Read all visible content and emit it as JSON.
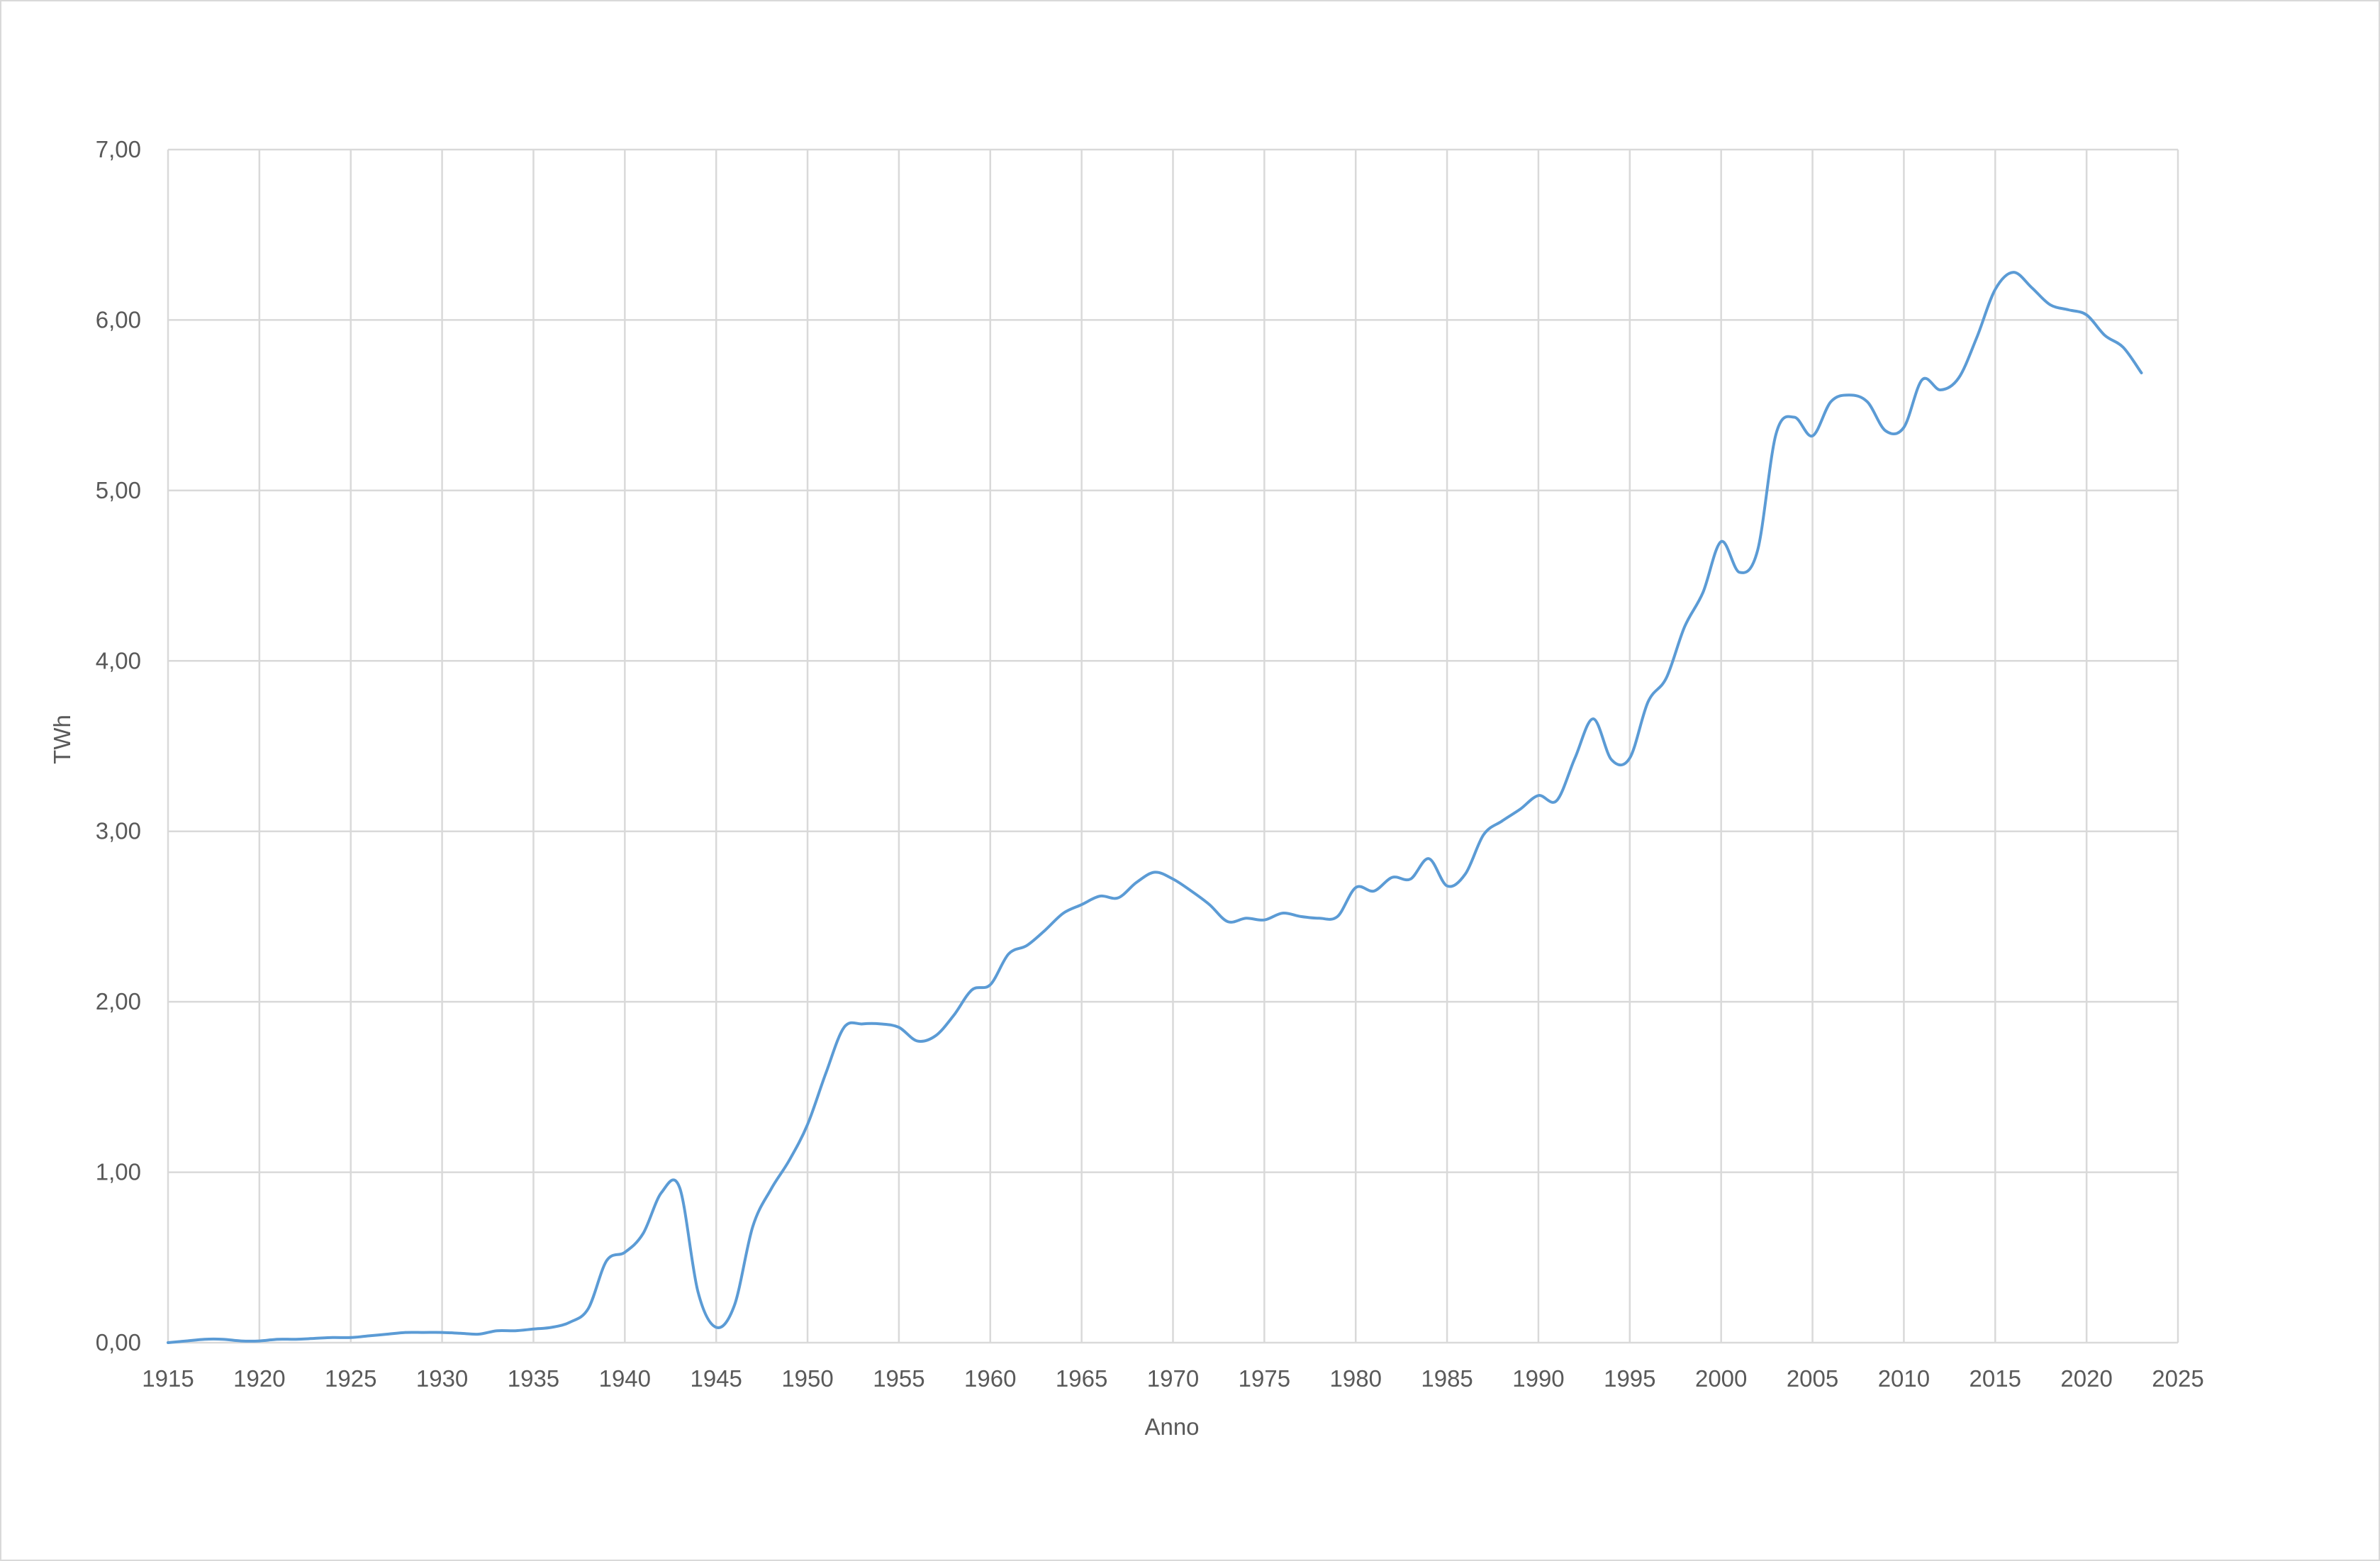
{
  "chart_data": {
    "type": "line",
    "title": "",
    "xlabel": "Anno",
    "ylabel": "TWh",
    "xlim": [
      1915,
      2025
    ],
    "ylim": [
      0,
      7
    ],
    "x_ticks": [
      "1915",
      "1920",
      "1925",
      "1930",
      "1935",
      "1940",
      "1945",
      "1950",
      "1955",
      "1960",
      "1965",
      "1970",
      "1975",
      "1980",
      "1985",
      "1990",
      "1995",
      "2000",
      "2005",
      "2010",
      "2015",
      "2020",
      "2025"
    ],
    "y_ticks": [
      "0,00",
      "1,00",
      "2,00",
      "3,00",
      "4,00",
      "5,00",
      "6,00",
      "7,00"
    ],
    "grid": true,
    "legend": "none",
    "colors": {
      "series": "#5b9bd5",
      "grid": "#d9d9d9",
      "text": "#595959"
    },
    "series": [
      {
        "x": [
          1915,
          1916,
          1917,
          1918,
          1919,
          1920,
          1921,
          1922,
          1923,
          1924,
          1925,
          1926,
          1927,
          1928,
          1929,
          1930,
          1931,
          1932,
          1933,
          1934,
          1935,
          1936,
          1937,
          1938,
          1939,
          1940,
          1941,
          1942,
          1943,
          1944,
          1945,
          1946,
          1947,
          1948,
          1949,
          1950,
          1951,
          1952,
          1953,
          1954,
          1955,
          1956,
          1957,
          1958,
          1959,
          1960,
          1961,
          1962,
          1963,
          1964,
          1965,
          1966,
          1967,
          1968,
          1969,
          1970,
          1971,
          1972,
          1973,
          1974,
          1975,
          1976,
          1977,
          1978,
          1979,
          1980,
          1981,
          1982,
          1983,
          1984,
          1985,
          1986,
          1987,
          1988,
          1989,
          1990,
          1991,
          1992,
          1993,
          1994,
          1995,
          1996,
          1997,
          1998,
          1999,
          2000,
          2001,
          2002,
          2003,
          2004,
          2005,
          2006,
          2007,
          2008,
          2009,
          2010,
          2011,
          2012,
          2013,
          2014,
          2015,
          2016,
          2017,
          2018,
          2019,
          2020,
          2021,
          2022,
          2023
        ],
        "y": [
          0.0,
          0.01,
          0.02,
          0.02,
          0.01,
          0.01,
          0.02,
          0.02,
          0.025,
          0.03,
          0.03,
          0.04,
          0.05,
          0.06,
          0.06,
          0.06,
          0.055,
          0.05,
          0.07,
          0.07,
          0.08,
          0.09,
          0.12,
          0.2,
          0.48,
          0.53,
          0.64,
          0.88,
          0.91,
          0.3,
          0.09,
          0.22,
          0.68,
          0.9,
          1.07,
          1.28,
          1.58,
          1.85,
          1.87,
          1.87,
          1.85,
          1.77,
          1.8,
          1.92,
          2.07,
          2.1,
          2.28,
          2.33,
          2.42,
          2.52,
          2.57,
          2.62,
          2.61,
          2.7,
          2.76,
          2.72,
          2.65,
          2.57,
          2.47,
          2.49,
          2.48,
          2.52,
          2.5,
          2.49,
          2.5,
          2.67,
          2.65,
          2.73,
          2.72,
          2.84,
          2.68,
          2.75,
          2.98,
          3.06,
          3.13,
          3.21,
          3.18,
          3.43,
          3.66,
          3.42,
          3.43,
          3.76,
          3.9,
          4.2,
          4.4,
          4.7,
          4.52,
          4.65,
          5.33,
          5.43,
          5.32,
          5.52,
          5.56,
          5.52,
          5.35,
          5.37,
          5.65,
          5.59,
          5.66,
          5.9,
          6.18,
          6.28,
          6.19,
          6.09,
          6.06,
          6.03,
          5.91,
          5.84,
          5.69
        ]
      }
    ]
  }
}
